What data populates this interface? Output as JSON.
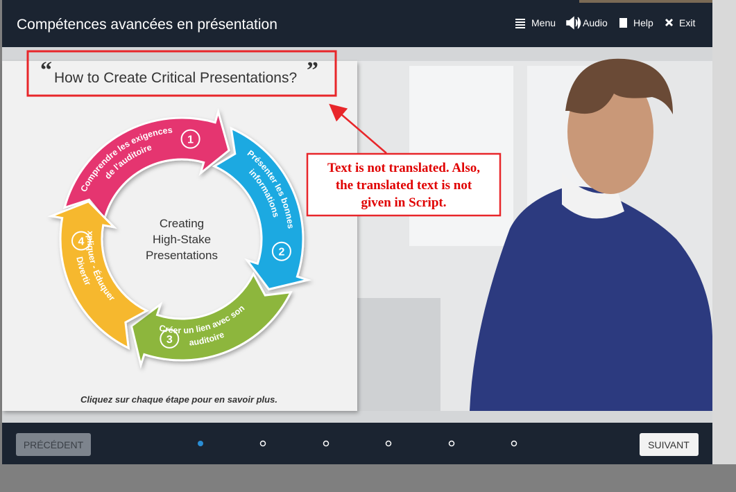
{
  "header": {
    "title": "Compétences avancées en présentation",
    "menu": [
      "Menu",
      "Audio",
      "Help",
      "Exit"
    ]
  },
  "slide": {
    "open_quote": "“",
    "heading": "How to Create Critical Presentations?",
    "close_quote": "”",
    "center": [
      "Creating",
      "High-Stake",
      "Presentations"
    ],
    "steps": [
      {
        "number": 1,
        "label": [
          "Comprendre les exigences",
          "de l'auditoire"
        ]
      },
      {
        "number": 2,
        "label": [
          "Présenter les bonnes",
          "informations"
        ]
      },
      {
        "number": 3,
        "label": [
          "Créer un lien avec son",
          "auditoire"
        ]
      },
      {
        "number": 4,
        "label": [
          "Expliquer - Éduquer -",
          "Divertir"
        ]
      }
    ],
    "instruction": "Cliquez sur chaque étape pour en savoir plus."
  },
  "annotation": [
    "Text is not translated. Also,",
    "the translated text is not",
    "given in Script."
  ],
  "footer": {
    "previous": "PRÉCÉDENT",
    "next": "SUIVANT"
  }
}
